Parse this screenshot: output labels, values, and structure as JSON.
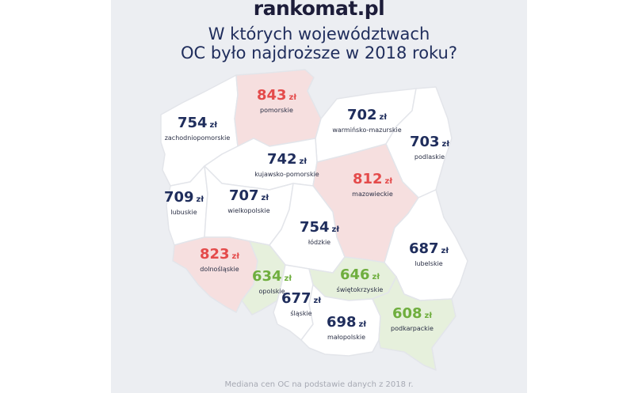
{
  "header": {
    "logo": "rankomat.pl",
    "title_line1": "W których województwach",
    "title_line2": "OC było najdroższe w 2018 roku?"
  },
  "colors": {
    "expensive": "#e44b4b",
    "cheap": "#6fae3e",
    "neutral": "#1f2d5c",
    "fill_expensive": "#f6dfdf",
    "fill_cheap": "#e6f0dc",
    "fill_neutral": "#ffffff"
  },
  "regions": [
    {
      "id": "pomorskie",
      "price": "843",
      "unit": "zł",
      "name": "pomorskie",
      "category": "expensive"
    },
    {
      "id": "zachodniopomorskie",
      "price": "754",
      "unit": "zł",
      "name": "zachodniopomorskie",
      "category": "neutral"
    },
    {
      "id": "warminsko-mazurskie",
      "price": "702",
      "unit": "zł",
      "name": "warmińsko-mazurskie",
      "category": "neutral"
    },
    {
      "id": "podlaskie",
      "price": "703",
      "unit": "zł",
      "name": "podlaskie",
      "category": "neutral"
    },
    {
      "id": "kujawsko-pomorskie",
      "price": "742",
      "unit": "zł",
      "name": "kujawsko-pomorskie",
      "category": "neutral"
    },
    {
      "id": "mazowieckie",
      "price": "812",
      "unit": "zł",
      "name": "mazowieckie",
      "category": "expensive"
    },
    {
      "id": "lubuskie",
      "price": "709",
      "unit": "zł",
      "name": "lubuskie",
      "category": "neutral"
    },
    {
      "id": "wielkopolskie",
      "price": "707",
      "unit": "zł",
      "name": "wielkopolskie",
      "category": "neutral"
    },
    {
      "id": "lodzkie",
      "price": "754",
      "unit": "zł",
      "name": "łódzkie",
      "category": "neutral"
    },
    {
      "id": "lubelskie",
      "price": "687",
      "unit": "zł",
      "name": "lubelskie",
      "category": "neutral"
    },
    {
      "id": "dolnoslaskie",
      "price": "823",
      "unit": "zł",
      "name": "dolnośląskie",
      "category": "expensive"
    },
    {
      "id": "opolskie",
      "price": "634",
      "unit": "zł",
      "name": "opolskie",
      "category": "cheap"
    },
    {
      "id": "swietokrzyskie",
      "price": "646",
      "unit": "zł",
      "name": "świętokrzyskie",
      "category": "cheap"
    },
    {
      "id": "slaskie",
      "price": "677",
      "unit": "zł",
      "name": "śląskie",
      "category": "neutral"
    },
    {
      "id": "malopolskie",
      "price": "698",
      "unit": "zł",
      "name": "małopolskie",
      "category": "neutral"
    },
    {
      "id": "podkarpackie",
      "price": "608",
      "unit": "zł",
      "name": "podkarpackie",
      "category": "cheap"
    }
  ],
  "footnote": "Mediana cen OC na podstawie danych z 2018 r."
}
